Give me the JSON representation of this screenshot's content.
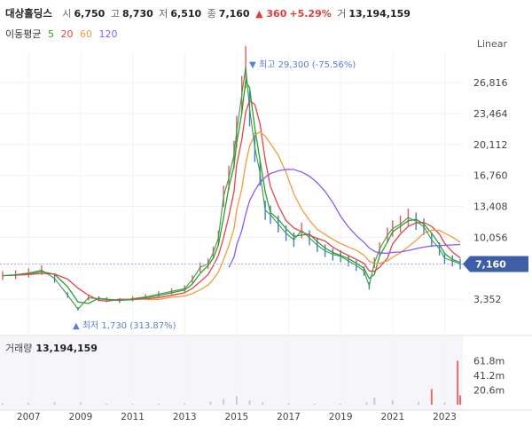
{
  "header": {
    "stock_name": "대상홀딩스",
    "open_label": "시",
    "open_value": "6,750",
    "high_label": "고",
    "high_value": "8,730",
    "low_label": "저",
    "low_value": "6,510",
    "close_label": "종",
    "close_value": "7,160",
    "change_value": "▲ 360",
    "change_pct": "+5.29%",
    "volume_label": "거",
    "volume_value": "13,194,159"
  },
  "moving_avg": {
    "label": "이동평균",
    "periods": [
      {
        "value": "5",
        "color": "#2ca02c"
      },
      {
        "value": "20",
        "color": "#e8434b"
      },
      {
        "value": "60",
        "color": "#f39c3c"
      },
      {
        "value": "120",
        "color": "#8a5cf6"
      }
    ]
  },
  "scale_mode": "Linear",
  "volume_panel": {
    "label": "거래량",
    "value": "13,194,159"
  },
  "chart_data": {
    "type": "line",
    "y_ticks": [
      "26,816",
      "23,464",
      "20,112",
      "16,760",
      "13,408",
      "10,056",
      "3,352"
    ],
    "y_tick_values": [
      26816,
      23464,
      20112,
      16760,
      13408,
      10056,
      3352
    ],
    "ylim": [
      0,
      30000
    ],
    "x_ticks": [
      "2007",
      "2009",
      "2011",
      "2013",
      "2015",
      "2017",
      "2019",
      "2021",
      "2023"
    ],
    "xlim": [
      2005.9,
      2023.7
    ],
    "current_price_label": "7,160",
    "current_price": 7160,
    "high_annotation": {
      "text": "▼ 최고 29,300 (-75.56%)",
      "x": 2015.35,
      "y": 29300
    },
    "low_annotation": {
      "text": "▲ 최저 1,730 (313.87%)",
      "x": 2008.9,
      "y": 1730
    },
    "series": [
      {
        "name": "종가",
        "color": "#3a9b4e",
        "x": [
          2006.0,
          2006.5,
          2007.0,
          2007.5,
          2008.0,
          2008.5,
          2008.9,
          2009.3,
          2009.7,
          2010.0,
          2010.5,
          2011.0,
          2011.5,
          2012.0,
          2012.5,
          2013.0,
          2013.3,
          2013.6,
          2013.9,
          2014.1,
          2014.3,
          2014.5,
          2014.7,
          2014.9,
          2015.0,
          2015.2,
          2015.35,
          2015.5,
          2015.7,
          2015.9,
          2016.1,
          2016.3,
          2016.6,
          2016.9,
          2017.2,
          2017.5,
          2017.8,
          2018.1,
          2018.4,
          2018.7,
          2019.0,
          2019.3,
          2019.6,
          2019.9,
          2020.1,
          2020.3,
          2020.5,
          2020.8,
          2021.0,
          2021.3,
          2021.6,
          2021.9,
          2022.2,
          2022.5,
          2022.8,
          2023.0,
          2023.3,
          2023.6
        ],
        "values": [
          5900,
          6000,
          6200,
          6500,
          5600,
          3800,
          2300,
          3500,
          3400,
          3300,
          3200,
          3400,
          3600,
          3900,
          4200,
          4500,
          5500,
          6800,
          7200,
          8400,
          10000,
          14500,
          16500,
          19000,
          21500,
          25500,
          28500,
          24000,
          19800,
          17000,
          13000,
          12500,
          11500,
          10500,
          9800,
          10800,
          10000,
          9200,
          8600,
          8200,
          8000,
          7500,
          7000,
          6400,
          4800,
          7300,
          8800,
          10300,
          11000,
          11500,
          12200,
          11800,
          11200,
          9800,
          8800,
          7800,
          7500,
          7160
        ]
      },
      {
        "name": "거래량",
        "color": "#d9d9e6",
        "x": [
          2006.0,
          2007.0,
          2008.0,
          2009.0,
          2010.0,
          2011.0,
          2012.0,
          2013.0,
          2014.0,
          2014.5,
          2015.0,
          2015.5,
          2016.0,
          2017.0,
          2018.0,
          2019.0,
          2020.0,
          2020.3,
          2021.0,
          2022.0,
          2022.5,
          2023.0,
          2023.5,
          2023.6
        ],
        "values": [
          2.0,
          2.5,
          3.5,
          3.0,
          1.5,
          1.2,
          1.5,
          2.0,
          4.0,
          8.0,
          12.0,
          6.0,
          3.0,
          2.0,
          1.5,
          1.2,
          3.0,
          10.0,
          6.0,
          4.0,
          22.0,
          3.0,
          62.0,
          13.2
        ]
      }
    ],
    "volume_ticks": [
      "61.8m",
      "41.2m",
      "20.6m"
    ],
    "volume_tick_values": [
      61.8,
      41.2,
      20.6
    ]
  }
}
